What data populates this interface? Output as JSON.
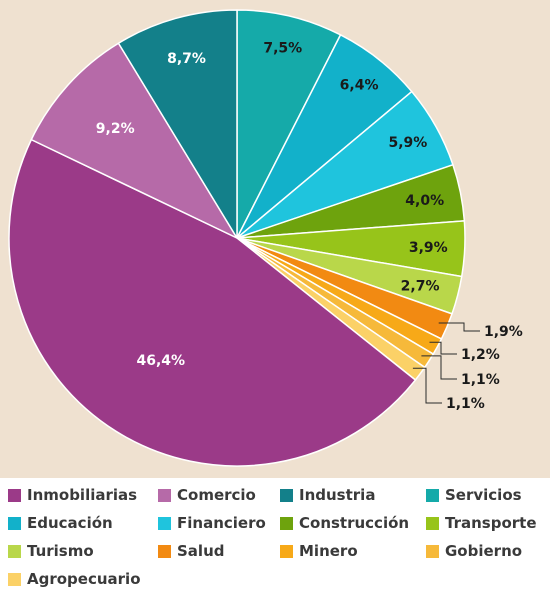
{
  "chart_data": {
    "type": "pie",
    "title": "",
    "categories": [
      "Inmobiliarias",
      "Comercio",
      "Industria",
      "Servicios",
      "Educación",
      "Financiero",
      "Construcción",
      "Transporte",
      "Turismo",
      "Salud",
      "Minero",
      "Gobierno",
      "Agropecuario"
    ],
    "order_clockwise_from_top": [
      "Servicios",
      "Educación",
      "Financiero",
      "Construcción",
      "Transporte",
      "Turismo",
      "Salud",
      "Minero",
      "Gobierno",
      "Agropecuario",
      "Inmobiliarias",
      "Comercio",
      "Industria"
    ],
    "values": {
      "Servicios": 7.5,
      "Educación": 6.4,
      "Financiero": 5.9,
      "Construcción": 4.0,
      "Transporte": 3.9,
      "Turismo": 2.7,
      "Salud": 1.9,
      "Minero": 1.2,
      "Gobierno": 1.1,
      "Agropecuario": 1.1,
      "Inmobiliarias": 46.4,
      "Comercio": 9.2,
      "Industria": 8.7
    },
    "labels": {
      "Servicios": "7,5%",
      "Educación": "6,4%",
      "Financiero": "5,9%",
      "Construcción": "4,0%",
      "Transporte": "3,9%",
      "Turismo": "2,7%",
      "Salud": "1,9%",
      "Minero": "1,2%",
      "Gobierno": "1,1%",
      "Agropecuario": "1,1%",
      "Inmobiliarias": "46,4%",
      "Comercio": "9,2%",
      "Industria": "8,7%"
    },
    "colors": {
      "Inmobiliarias": "#9b3a88",
      "Comercio": "#b66aa8",
      "Industria": "#13808a",
      "Servicios": "#15aaa9",
      "Educación": "#12b1ca",
      "Financiero": "#1fc4dd",
      "Construcción": "#6ea30d",
      "Transporte": "#97c41a",
      "Turismo": "#b9d74a",
      "Salud": "#f28a12",
      "Minero": "#f7a918",
      "Gobierno": "#f6b93a",
      "Agropecuario": "#fbd167"
    },
    "label_text_color": {
      "Inmobiliarias": "#ffffff",
      "Comercio": "#ffffff",
      "Industria": "#ffffff",
      "Servicios": "#1a1a1a",
      "Educación": "#1a1a1a",
      "Financiero": "#1a1a1a",
      "Construcción": "#1a1a1a",
      "Transporte": "#1a1a1a",
      "Turismo": "#1a1a1a"
    },
    "callout_slices": [
      "Salud",
      "Minero",
      "Gobierno",
      "Agropecuario"
    ],
    "legend_placement": "bottom",
    "background_color": "#efe1d0"
  }
}
